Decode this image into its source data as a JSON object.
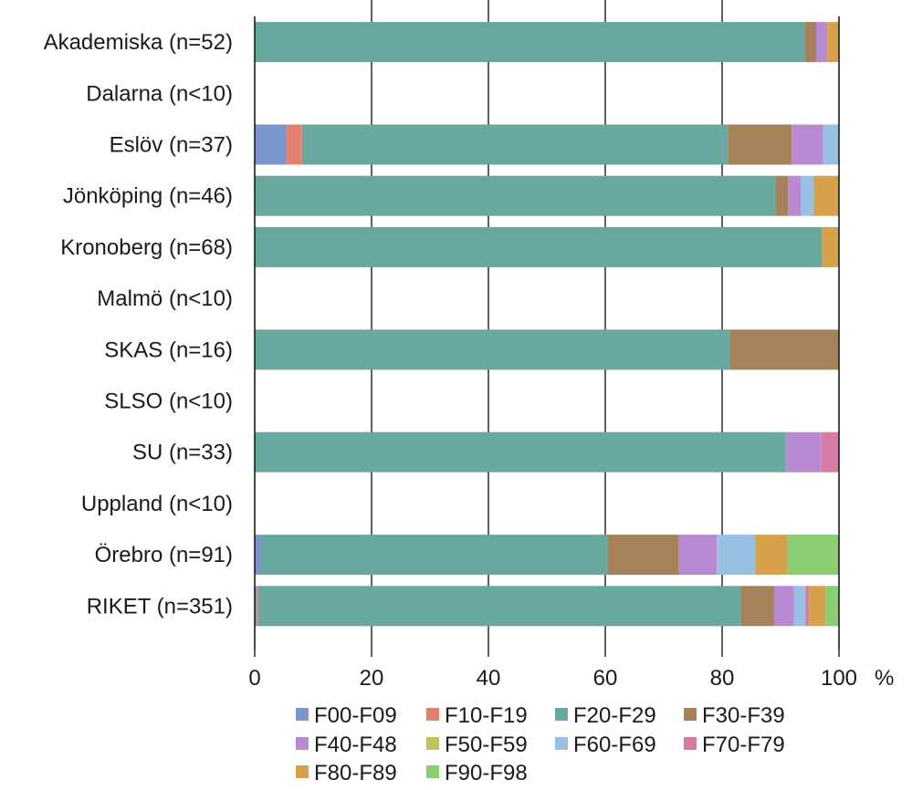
{
  "chart_data": {
    "type": "bar",
    "orientation": "horizontal",
    "stacked": true,
    "title": "",
    "xlabel": "",
    "ylabel": "",
    "x_unit": "%",
    "xlim": [
      0,
      100
    ],
    "xticks": [
      "0",
      "20",
      "40",
      "60",
      "80",
      "100"
    ],
    "grid": "vertical",
    "legend_position": "bottom",
    "categories": [
      "Akademiska (n=52)",
      "Dalarna (n<10)",
      "Eslöv (n=37)",
      "Jönköping (n=46)",
      "Kronoberg (n=68)",
      "Malmö (n<10)",
      "SKAS (n=16)",
      "SLSO (n<10)",
      "SU (n=33)",
      "Uppland (n<10)",
      "Örebro (n=91)",
      "RIKET (n=351)"
    ],
    "series": [
      {
        "name": "F00-F09",
        "color": "#7b96cf",
        "values": [
          0,
          0,
          5.4,
          0,
          0,
          0,
          0,
          0,
          0,
          0,
          1.1,
          0.3
        ]
      },
      {
        "name": "F10-F19",
        "color": "#e3806e",
        "values": [
          0,
          0,
          2.7,
          0,
          0,
          0,
          0,
          0,
          0,
          0,
          0,
          0.3
        ]
      },
      {
        "name": "F20-F29",
        "color": "#69a89e",
        "values": [
          94.2,
          0,
          73.0,
          89.1,
          97.1,
          0,
          81.3,
          0,
          90.9,
          0,
          59.3,
          82.6
        ]
      },
      {
        "name": "F30-F39",
        "color": "#a6825a",
        "values": [
          1.9,
          0,
          10.8,
          2.2,
          0,
          0,
          18.7,
          0,
          0,
          0,
          12.1,
          5.7
        ]
      },
      {
        "name": "F40-F48",
        "color": "#b88ad2",
        "values": [
          1.9,
          0,
          5.4,
          2.2,
          0,
          0,
          0,
          0,
          6.1,
          0,
          6.6,
          3.4
        ]
      },
      {
        "name": "F50-F59",
        "color": "#c4c05a",
        "values": [
          0,
          0,
          0,
          0,
          0,
          0,
          0,
          0,
          0,
          0,
          0,
          0
        ]
      },
      {
        "name": "F60-F69",
        "color": "#98c0e2",
        "values": [
          0,
          0,
          2.7,
          2.2,
          0,
          0,
          0,
          0,
          0,
          0,
          6.6,
          2.0
        ]
      },
      {
        "name": "F70-F79",
        "color": "#d87aa6",
        "values": [
          0,
          0,
          0,
          0,
          0,
          0,
          0,
          0,
          3.0,
          0,
          0,
          0.6
        ]
      },
      {
        "name": "F80-F89",
        "color": "#d7a04a",
        "values": [
          1.9,
          0,
          0,
          4.3,
          2.9,
          0,
          0,
          0,
          0,
          0,
          5.5,
          2.8
        ]
      },
      {
        "name": "F90-F98",
        "color": "#8acd72",
        "values": [
          0,
          0,
          0,
          0,
          0,
          0,
          0,
          0,
          0,
          0,
          8.8,
          2.3
        ]
      }
    ]
  }
}
